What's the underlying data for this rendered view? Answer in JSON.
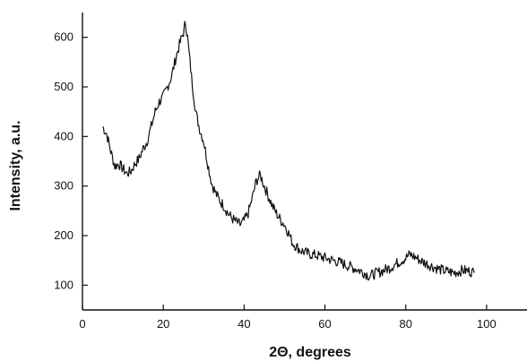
{
  "chart_data": {
    "type": "line",
    "xlabel": "2Θ, degrees",
    "ylabel": "Intensity, a.u.",
    "xlim": [
      0,
      110
    ],
    "ylim": [
      50,
      650
    ],
    "xticks": [
      0,
      20,
      40,
      60,
      80,
      100
    ],
    "yticks": [
      100,
      200,
      300,
      400,
      500,
      600
    ],
    "grid": false,
    "series": [
      {
        "color": "#111111",
        "points": [
          [
            5,
            420
          ],
          [
            6,
            405
          ],
          [
            7,
            370
          ],
          [
            8,
            340
          ],
          [
            9,
            345
          ],
          [
            10,
            335
          ],
          [
            11,
            325
          ],
          [
            12,
            330
          ],
          [
            13,
            345
          ],
          [
            14,
            355
          ],
          [
            15,
            375
          ],
          [
            16,
            390
          ],
          [
            17,
            420
          ],
          [
            18,
            450
          ],
          [
            19,
            470
          ],
          [
            20,
            480
          ],
          [
            21,
            500
          ],
          [
            22,
            520
          ],
          [
            23,
            555
          ],
          [
            24,
            585
          ],
          [
            25,
            610
          ],
          [
            25.5,
            630
          ],
          [
            26,
            600
          ],
          [
            27,
            520
          ],
          [
            28,
            450
          ],
          [
            29,
            415
          ],
          [
            30,
            390
          ],
          [
            31,
            345
          ],
          [
            32,
            305
          ],
          [
            33,
            285
          ],
          [
            34,
            270
          ],
          [
            35,
            260
          ],
          [
            36,
            245
          ],
          [
            37,
            235
          ],
          [
            38,
            228
          ],
          [
            39,
            222
          ],
          [
            40,
            230
          ],
          [
            41,
            245
          ],
          [
            42,
            275
          ],
          [
            43,
            310
          ],
          [
            44,
            322
          ],
          [
            45,
            300
          ],
          [
            46,
            280
          ],
          [
            47,
            260
          ],
          [
            48,
            245
          ],
          [
            49,
            232
          ],
          [
            50,
            222
          ],
          [
            51,
            205
          ],
          [
            52,
            185
          ],
          [
            54,
            170
          ],
          [
            56,
            163
          ],
          [
            58,
            160
          ],
          [
            60,
            155
          ],
          [
            62,
            150
          ],
          [
            64,
            145
          ],
          [
            66,
            138
          ],
          [
            68,
            132
          ],
          [
            70,
            124
          ],
          [
            71,
            118
          ],
          [
            72,
            122
          ],
          [
            74,
            128
          ],
          [
            76,
            135
          ],
          [
            78,
            145
          ],
          [
            80,
            155
          ],
          [
            81,
            162
          ],
          [
            82,
            158
          ],
          [
            84,
            148
          ],
          [
            86,
            140
          ],
          [
            88,
            133
          ],
          [
            90,
            128
          ],
          [
            92,
            125
          ],
          [
            94,
            130
          ],
          [
            96,
            128
          ],
          [
            97,
            125
          ]
        ]
      }
    ]
  }
}
